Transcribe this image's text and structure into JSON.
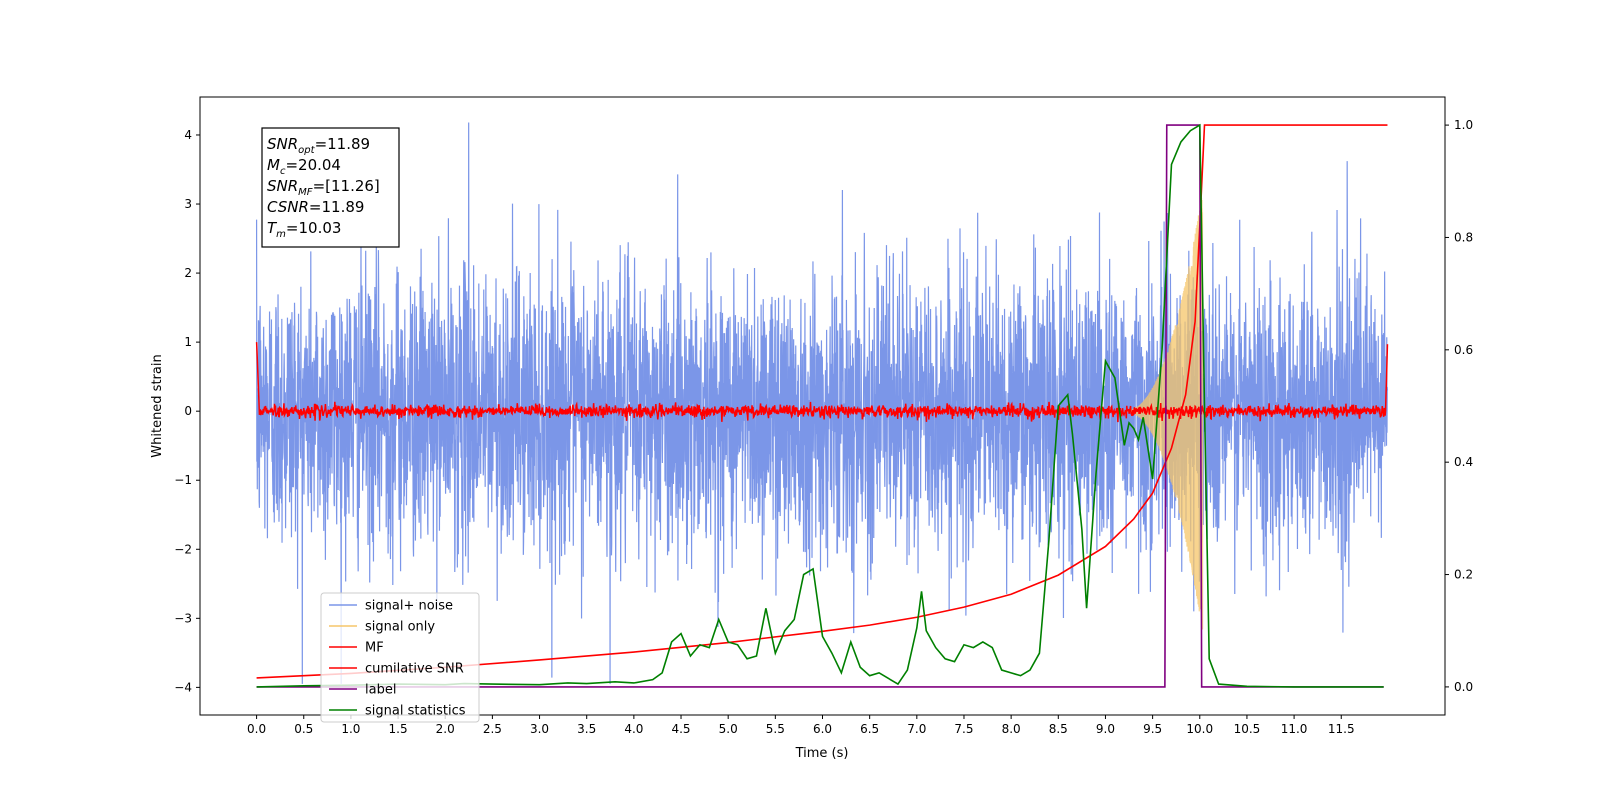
{
  "chart_data": {
    "type": "line",
    "xlabel": "Time (s)",
    "ylabel": "Whitened strain",
    "xlim": [
      -0.6,
      12.6
    ],
    "ylim": [
      -4.4,
      4.55
    ],
    "y2lim": [
      -0.05,
      1.05
    ],
    "xticks": [
      0.0,
      0.5,
      1.0,
      1.5,
      2.0,
      2.5,
      3.0,
      3.5,
      4.0,
      4.5,
      5.0,
      5.5,
      6.0,
      6.5,
      7.0,
      7.5,
      8.0,
      8.5,
      9.0,
      9.5,
      10.0,
      10.5,
      11.0,
      11.5
    ],
    "xtick_labels": [
      "0.0",
      "0.5",
      "1.0",
      "1.5",
      "2.0",
      "2.5",
      "3.0",
      "3.5",
      "4.0",
      "4.5",
      "5.0",
      "5.5",
      "6.0",
      "6.5",
      "7.0",
      "7.5",
      "8.0",
      "8.5",
      "9.0",
      "9.5",
      "10.0",
      "10.5",
      "11.0",
      "11.5"
    ],
    "yticks": [
      -4,
      -3,
      -2,
      -1,
      0,
      1,
      2,
      3,
      4
    ],
    "ytick_labels": [
      "−4",
      "−3",
      "−2",
      "−1",
      "0",
      "1",
      "2",
      "3",
      "4"
    ],
    "y2ticks": [
      0.0,
      0.2,
      0.4,
      0.6,
      0.8,
      1.0
    ],
    "y2tick_labels": [
      "0.0",
      "0.2",
      "0.4",
      "0.6",
      "0.8",
      "1.0"
    ],
    "annotation": [
      {
        "base": "SNR",
        "sub": "opt",
        "value": "=11.89"
      },
      {
        "base": "M",
        "sub": "c",
        "value": "=20.04"
      },
      {
        "base": "SNR",
        "sub": "MF",
        "value": "=[11.26]"
      },
      {
        "base": "CSNR",
        "sub": "",
        "value": "=11.89"
      },
      {
        "base": "T",
        "sub": "m",
        "value": "=10.03"
      }
    ],
    "legend_position": "lower-left",
    "series": [
      {
        "name": "signal+ noise",
        "color": "#7b96e8",
        "axis": "left",
        "kind": "noise",
        "x_range": [
          0.0,
          11.99
        ],
        "sigma": 1.0,
        "max_value": 4.18,
        "min_value": -3.95
      },
      {
        "name": "signal only",
        "color": "#f5c56a",
        "axis": "left",
        "kind": "chirp",
        "x_range": [
          9.2,
          10.03
        ],
        "peak_amplitude": 3.2
      },
      {
        "name": "MF",
        "color": "#ff0000",
        "axis": "left",
        "kind": "mf",
        "x_range": [
          0.0,
          11.99
        ],
        "start_value": 1.0,
        "end_value": 0.97,
        "baseline": 0.0
      },
      {
        "name": "cumilative SNR",
        "color": "#ff0000",
        "axis": "right",
        "x": [
          0.0,
          1.0,
          2.0,
          3.0,
          4.0,
          5.0,
          6.0,
          6.5,
          7.0,
          7.5,
          8.0,
          8.5,
          9.0,
          9.3,
          9.5,
          9.7,
          9.85,
          9.95,
          10.0,
          10.05,
          11.99
        ],
        "y": [
          0.016,
          0.024,
          0.035,
          0.048,
          0.062,
          0.079,
          0.099,
          0.11,
          0.124,
          0.142,
          0.165,
          0.199,
          0.25,
          0.299,
          0.345,
          0.425,
          0.52,
          0.65,
          0.82,
          1.0,
          1.0
        ]
      },
      {
        "name": "label",
        "color": "#800080",
        "axis": "right",
        "x": [
          0.0,
          9.63,
          9.65,
          10.0,
          10.02,
          11.95
        ],
        "y": [
          0.0,
          0.0,
          1.0,
          1.0,
          0.0,
          0.0
        ]
      },
      {
        "name": "signal statistics",
        "color": "#008000",
        "axis": "right",
        "x": [
          0.0,
          0.5,
          1.0,
          1.5,
          2.0,
          2.2,
          2.5,
          3.0,
          3.3,
          3.5,
          3.8,
          4.0,
          4.2,
          4.3,
          4.4,
          4.5,
          4.6,
          4.7,
          4.8,
          4.9,
          5.0,
          5.1,
          5.2,
          5.3,
          5.4,
          5.5,
          5.6,
          5.7,
          5.8,
          5.9,
          6.0,
          6.1,
          6.2,
          6.3,
          6.4,
          6.5,
          6.6,
          6.7,
          6.8,
          6.9,
          7.0,
          7.05,
          7.1,
          7.2,
          7.3,
          7.4,
          7.5,
          7.6,
          7.7,
          7.8,
          7.9,
          8.0,
          8.1,
          8.2,
          8.3,
          8.4,
          8.5,
          8.6,
          8.65,
          8.75,
          8.8,
          8.9,
          9.0,
          9.1,
          9.2,
          9.25,
          9.3,
          9.35,
          9.4,
          9.5,
          9.6,
          9.7,
          9.75,
          9.8,
          9.9,
          10.0,
          10.05,
          10.1,
          10.2,
          10.5,
          11.0,
          11.5,
          11.95
        ],
        "y": [
          0.0,
          0.002,
          0.003,
          0.005,
          0.004,
          0.006,
          0.005,
          0.004,
          0.007,
          0.006,
          0.009,
          0.007,
          0.013,
          0.025,
          0.08,
          0.095,
          0.055,
          0.075,
          0.07,
          0.12,
          0.08,
          0.075,
          0.05,
          0.055,
          0.14,
          0.06,
          0.1,
          0.12,
          0.2,
          0.21,
          0.09,
          0.06,
          0.025,
          0.08,
          0.035,
          0.02,
          0.025,
          0.015,
          0.005,
          0.03,
          0.105,
          0.17,
          0.1,
          0.07,
          0.05,
          0.045,
          0.075,
          0.07,
          0.08,
          0.07,
          0.03,
          0.025,
          0.02,
          0.03,
          0.06,
          0.26,
          0.5,
          0.52,
          0.45,
          0.28,
          0.14,
          0.38,
          0.58,
          0.55,
          0.43,
          0.47,
          0.46,
          0.44,
          0.48,
          0.37,
          0.6,
          0.93,
          0.95,
          0.97,
          0.99,
          1.0,
          0.5,
          0.05,
          0.005,
          0.001,
          0.0,
          0.0,
          0.0
        ]
      }
    ]
  }
}
